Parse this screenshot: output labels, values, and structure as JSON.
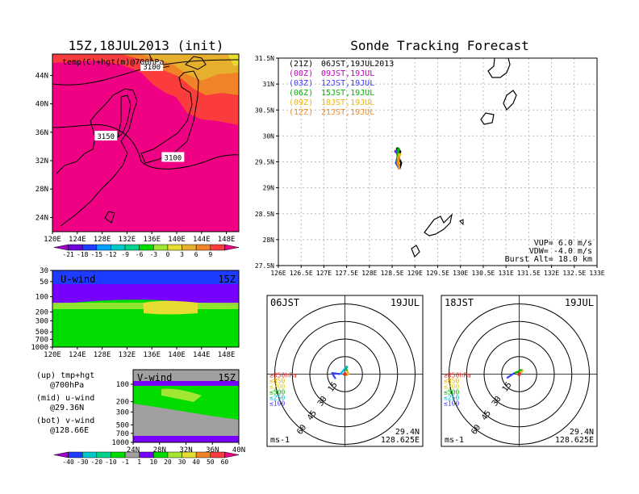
{
  "main_title": "Sonde Tracking Forecast",
  "init_panel": {
    "title": "15Z,18JUL2013 (init)",
    "label": "temp(C)+hgt(m)@700hPa",
    "contours": [
      {
        "label": "3100",
        "lon": 136,
        "lat": 45.2
      },
      {
        "label": "3150",
        "lon": 128.6,
        "lat": 35.4
      },
      {
        "label": "3100",
        "lon": 139.4,
        "lat": 32.4
      }
    ],
    "lon_ticks": [
      "120E",
      "124E",
      "128E",
      "132E",
      "136E",
      "140E",
      "144E",
      "148E"
    ],
    "lat_ticks": [
      "44N",
      "40N",
      "36N",
      "32N",
      "28N",
      "24N"
    ],
    "colorbar_labels": [
      "-21",
      "-18",
      "-15",
      "-12",
      "-9",
      "-6",
      "-3",
      "0",
      "3",
      "6",
      "9"
    ],
    "colorbar_colors": [
      "#a000c8",
      "#6e00dc",
      "#1e3cff",
      "#00a0ff",
      "#00c8c8",
      "#00d28c",
      "#00dc00",
      "#a0e632",
      "#e6dc32",
      "#e6af2d",
      "#f08228",
      "#fa3c3c",
      "#f00082"
    ]
  },
  "u_wind": {
    "label": "U-wind",
    "time": "15Z",
    "p_ticks": [
      "30",
      "50",
      "100",
      "200",
      "300",
      "500",
      "700",
      "1000"
    ],
    "lon_ticks": [
      "120E",
      "124E",
      "128E",
      "132E",
      "136E",
      "140E",
      "144E",
      "148E"
    ]
  },
  "v_wind": {
    "label": "V-wind",
    "time": "15Z",
    "p_ticks": [
      "100",
      "200",
      "300",
      "500",
      "700",
      "1000"
    ],
    "lat_ticks": [
      "24N",
      "28N",
      "32N",
      "36N",
      "40N"
    ]
  },
  "legend_notes": [
    {
      "line1": "(up) tmp+hgt",
      "line2": "@700hPa"
    },
    {
      "line1": "(mid) u-wind",
      "line2": "@29.36N"
    },
    {
      "line1": "(bot) v-wind",
      "line2": "@128.66E"
    }
  ],
  "wind_colorbar": {
    "labels": [
      "-40",
      "-30",
      "-20",
      "-10",
      "-1",
      "1",
      "10",
      "20",
      "30",
      "40",
      "50",
      "60"
    ],
    "colors": [
      "#a000c8",
      "#1e3cff",
      "#00c8c8",
      "#00d28c",
      "#00dc00",
      "#a0a0a0",
      "#7800ff",
      "#00dc00",
      "#a0e632",
      "#e6dc32",
      "#f08228",
      "#fa3c3c",
      "#f00082"
    ]
  },
  "track": {
    "lon_ticks": [
      "126E",
      "126.5E",
      "127E",
      "127.5E",
      "128E",
      "128.5E",
      "129E",
      "129.5E",
      "130E",
      "130.5E",
      "131E",
      "131.5E",
      "132E",
      "132.5E",
      "133E"
    ],
    "lat_ticks": [
      "31.5N",
      "31N",
      "30.5N",
      "30N",
      "29.5N",
      "29N",
      "28.5N",
      "28N",
      "27.5N"
    ],
    "legend": [
      {
        "code": "(21Z)",
        "time": "06JST,19JUL2013",
        "color": "#000000"
      },
      {
        "code": "(00Z)",
        "time": "09JST,19JUL",
        "color": "#c000c0"
      },
      {
        "code": "(03Z)",
        "time": "12JST,19JUL",
        "color": "#3c3cff"
      },
      {
        "code": "(06Z)",
        "time": "15JST,19JUL",
        "color": "#00b400"
      },
      {
        "code": "(09Z)",
        "time": "18JST,19JUL",
        "color": "#f0b400"
      },
      {
        "code": "(12Z)",
        "time": "21JST,19JUL",
        "color": "#f08c28"
      }
    ],
    "params": [
      "VUP=  6.0 m/s",
      "VDW= -4.0 m/s",
      "Burst Alt= 18.0 km"
    ]
  },
  "chart_data": {
    "type": "scatter",
    "title": "Sonde Tracking Forecast",
    "xlim": [
      126,
      133
    ],
    "ylim": [
      27.5,
      31.5
    ],
    "series": [
      {
        "name": "(21Z) 06JST,19JUL2013",
        "color": "#000000",
        "x": [
          128.66,
          128.7,
          128.64,
          128.68,
          128.62
        ],
        "y": [
          29.36,
          29.48,
          29.58,
          29.7,
          29.75
        ]
      },
      {
        "name": "(00Z) 09JST,19JUL",
        "color": "#c000c0",
        "x": [
          128.66,
          128.6,
          128.64,
          128.58
        ],
        "y": [
          29.36,
          29.5,
          29.62,
          29.7
        ]
      },
      {
        "name": "(03Z) 12JST,19JUL",
        "color": "#3c3cff",
        "x": [
          128.66,
          128.58,
          128.62,
          128.6
        ],
        "y": [
          29.36,
          29.48,
          29.6,
          29.7
        ]
      },
      {
        "name": "(06Z) 15JST,19JUL",
        "color": "#00b400",
        "x": [
          128.66,
          128.6,
          128.62,
          128.64
        ],
        "y": [
          29.36,
          29.5,
          29.62,
          29.74
        ]
      },
      {
        "name": "(09Z) 18JST,19JUL",
        "color": "#f0b400",
        "x": [
          128.66,
          128.64,
          128.66
        ],
        "y": [
          29.36,
          29.5,
          29.64
        ]
      },
      {
        "name": "(12Z) 21JST,19JUL",
        "color": "#f08c28",
        "x": [
          128.66,
          128.62,
          128.64
        ],
        "y": [
          29.36,
          29.48,
          29.58
        ]
      }
    ]
  },
  "hodographs": [
    {
      "time": "06JST",
      "date": "19JUL",
      "unit": "ms-1",
      "lat": "29.4N",
      "lon": "128.625E",
      "ring_labels": [
        "15",
        "30",
        "45",
        "60"
      ],
      "legend": [
        {
          "label": "≥850hPa",
          "color": "#e03030"
        },
        {
          "label": "≤850",
          "color": "#f0b400"
        },
        {
          "label": "≤700",
          "color": "#e0d000"
        },
        {
          "label": "≤500",
          "color": "#00b400"
        },
        {
          "label": "≤250",
          "color": "#00b4dc"
        },
        {
          "label": "≤100",
          "color": "#3c3cff"
        }
      ],
      "hodo_points": [
        {
          "color": "#e03030",
          "pts": [
            [
              0,
              0
            ],
            [
              1,
              -1
            ]
          ]
        },
        {
          "color": "#f0b400",
          "pts": [
            [
              1,
              -1
            ],
            [
              3,
              0
            ],
            [
              2,
              3
            ]
          ]
        },
        {
          "color": "#00b400",
          "pts": [
            [
              2,
              3
            ],
            [
              1,
              4
            ],
            [
              2,
              7
            ]
          ]
        },
        {
          "color": "#00b4dc",
          "pts": [
            [
              2,
              7
            ],
            [
              -4,
              0
            ]
          ]
        },
        {
          "color": "#3c3cff",
          "pts": [
            [
              -4,
              0
            ],
            [
              -11,
              1
            ],
            [
              -8,
              -4
            ]
          ]
        }
      ]
    },
    {
      "time": "18JST",
      "date": "19JUL",
      "unit": "ms-1",
      "lat": "29.4N",
      "lon": "128.625E",
      "ring_labels": [
        "15",
        "30",
        "45",
        "60"
      ],
      "legend": [
        {
          "label": "≥850hPa",
          "color": "#e03030"
        },
        {
          "label": "≤850",
          "color": "#f0b400"
        },
        {
          "label": "≤700",
          "color": "#e0d000"
        },
        {
          "label": "≤500",
          "color": "#00b400"
        },
        {
          "label": "≤250",
          "color": "#00b4dc"
        },
        {
          "label": "≤100",
          "color": "#3c3cff"
        }
      ],
      "hodo_points": [
        {
          "color": "#e03030",
          "pts": [
            [
              0,
              0
            ],
            [
              1,
              1
            ]
          ]
        },
        {
          "color": "#f0b400",
          "pts": [
            [
              1,
              1
            ],
            [
              3,
              3
            ],
            [
              2,
              4
            ]
          ]
        },
        {
          "color": "#00b400",
          "pts": [
            [
              2,
              4
            ],
            [
              -1,
              2
            ],
            [
              -4,
              1
            ]
          ]
        },
        {
          "color": "#3c3cff",
          "pts": [
            [
              -4,
              1
            ],
            [
              -10,
              -3
            ],
            [
              -7,
              -1
            ]
          ]
        }
      ]
    }
  ]
}
